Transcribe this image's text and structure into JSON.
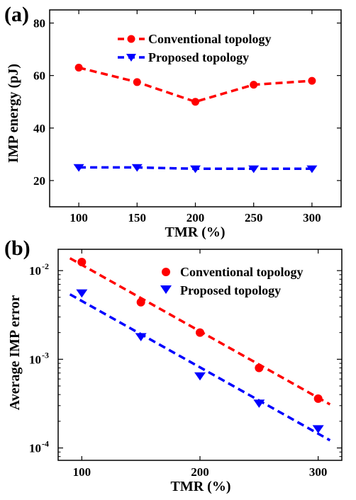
{
  "chart_data": [
    {
      "type": "line",
      "panel_label": "(a)",
      "xlabel": "TMR (%)",
      "ylabel": "IMP energy (pJ)",
      "x": [
        100,
        150,
        200,
        250,
        300
      ],
      "xlim": [
        75,
        325
      ],
      "ylim": [
        10,
        85
      ],
      "xticks": [
        100,
        150,
        200,
        250,
        300
      ],
      "yticks": [
        20,
        40,
        60,
        80
      ],
      "grid": false,
      "legend_position": "top-right",
      "series": [
        {
          "name": "Conventional topology",
          "values": [
            63,
            57.5,
            50,
            56.5,
            58
          ],
          "color": "#ff0000",
          "marker": "circle",
          "line": "dashed"
        },
        {
          "name": "Proposed topology",
          "values": [
            25,
            25,
            24.5,
            24.5,
            24.5
          ],
          "color": "#0000ff",
          "marker": "triangle-down",
          "line": "dashed"
        }
      ]
    },
    {
      "type": "scatter",
      "panel_label": "(b)",
      "xlabel": "TMR (%)",
      "ylabel": "Average IMP error",
      "yscale": "log",
      "x": [
        100,
        150,
        200,
        250,
        300
      ],
      "xlim": [
        80,
        320
      ],
      "ylim": [
        7.25e-05,
        0.0174
      ],
      "xticks": [
        100,
        200,
        300
      ],
      "yticks": [
        0.0001,
        0.001,
        0.01
      ],
      "ytick_labels": [
        {
          "base": "10",
          "exp": "-4"
        },
        {
          "base": "10",
          "exp": "-3"
        },
        {
          "base": "10",
          "exp": "-2"
        }
      ],
      "grid": false,
      "legend_position": "top-right",
      "series": [
        {
          "name": "Conventional topology",
          "values": [
            0.0125,
            0.0044,
            0.002,
            0.0008,
            0.00036
          ],
          "color": "#ff0000",
          "marker": "circle",
          "fit": {
            "x": [
              90,
              310
            ],
            "y": [
              0.0138,
              0.00031
            ]
          }
        },
        {
          "name": "Proposed topology",
          "values": [
            0.0056,
            0.0018,
            0.00065,
            0.00032,
            0.000165
          ],
          "color": "#0000ff",
          "marker": "triangle-down",
          "fit": {
            "x": [
              90,
              310
            ],
            "y": [
              0.0054,
              0.000122
            ]
          }
        }
      ]
    }
  ]
}
